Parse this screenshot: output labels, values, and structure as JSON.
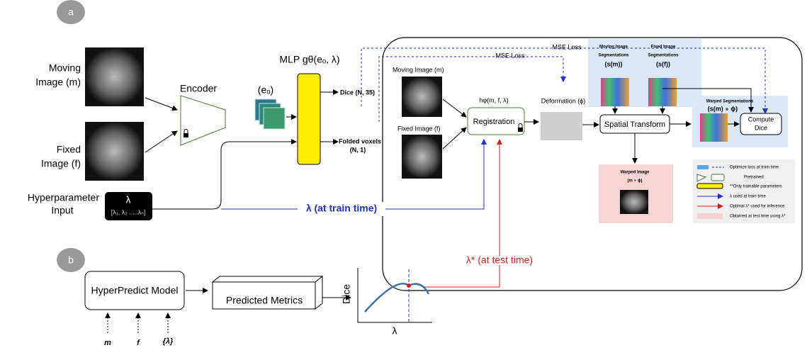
{
  "panel_labels": [
    "a",
    "b"
  ],
  "inputs": {
    "moving": [
      "Moving",
      "Image (m)"
    ],
    "fixed": [
      "Fixed",
      "Image (f)"
    ],
    "hyper": [
      "Hyperparameter",
      "Input"
    ],
    "lambda": "λ",
    "lambda_list": "[λ₁, λ₂ .....λₙ]"
  },
  "encoder": "Encoder",
  "embedding": "(eₒ)",
  "mlp": "MLP gθ(eₒ, λ)",
  "outputs": {
    "dice": "Dice (N, 35)",
    "folded": [
      "Folded voxels",
      "(N, 1)"
    ]
  },
  "losses": [
    "MSE Loss",
    "MSE Loss"
  ],
  "registration": {
    "moving": "Moving Image (m)",
    "fixed": "Fixed Image (f)",
    "function": "hφ(m, f, λ)",
    "box": "Registration",
    "deformation": "Deformation (ϕ)",
    "spatial": "Spatial Transform",
    "moving_seg": [
      "Moving Image",
      "Segmentations",
      "(s(m))"
    ],
    "fixed_seg": [
      "Fixed Image",
      "Segmentations",
      "(s(f))"
    ],
    "warped_seg": [
      "Warped Segmentations",
      "(s(m) ∘ ϕ)"
    ],
    "compute": [
      "Compute",
      "Dice"
    ],
    "warped_image": [
      "Warped Image",
      "(m ∘ ϕ)"
    ]
  },
  "legend": [
    "Optimize loss at train time",
    "Pretrained",
    "**Only trainable parameters",
    "λ used at train time",
    "Optimal λ* used for inference",
    "Obtained at test time using λ*"
  ],
  "train_lambda": "λ (at train time)",
  "test_lambda": "λ* (at test time)",
  "panel_b": {
    "model": "HyperPredict Model",
    "metrics": "Predicted Metrics",
    "y_axis": "Dice",
    "x_axis": "λ",
    "inputs": [
      "m",
      "f",
      "{λ}"
    ]
  }
}
